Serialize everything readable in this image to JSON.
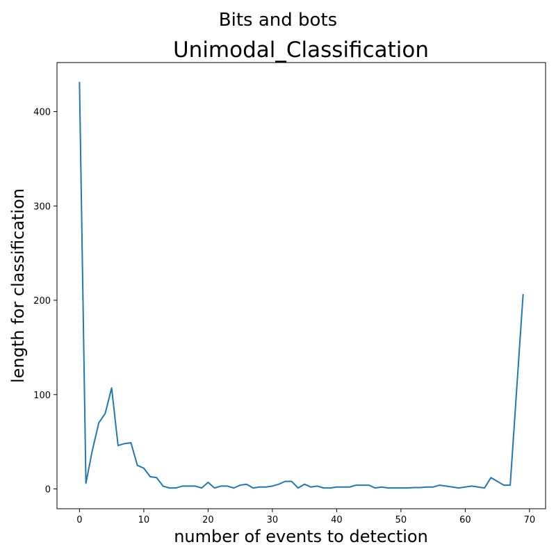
{
  "chart_data": {
    "type": "line",
    "suptitle": "Bits and bots",
    "title": "Unimodal_Classification",
    "xlabel": "number of events to detection",
    "ylabel": "length for classification",
    "xlim": [
      -3.5,
      72.5
    ],
    "ylim": [
      -21,
      452
    ],
    "xticks": [
      0,
      10,
      20,
      30,
      40,
      50,
      60,
      70
    ],
    "yticks": [
      0,
      100,
      200,
      300,
      400
    ],
    "grid": false,
    "legend": "none",
    "color": "#1f77b4",
    "x": [
      0,
      1,
      2,
      3,
      4,
      5,
      6,
      7,
      8,
      9,
      10,
      11,
      12,
      13,
      14,
      15,
      16,
      17,
      18,
      19,
      20,
      21,
      22,
      23,
      24,
      25,
      26,
      27,
      28,
      29,
      30,
      31,
      32,
      33,
      34,
      35,
      36,
      37,
      38,
      39,
      40,
      41,
      42,
      43,
      44,
      45,
      46,
      47,
      48,
      49,
      50,
      51,
      52,
      53,
      54,
      55,
      56,
      57,
      58,
      59,
      60,
      61,
      62,
      63,
      64,
      65,
      66,
      67,
      68,
      69
    ],
    "values": [
      431,
      6,
      41,
      70,
      80,
      107,
      46,
      48,
      49,
      25,
      22,
      13,
      12,
      3,
      1,
      1,
      3,
      3,
      3,
      1,
      7,
      1,
      3,
      3,
      1,
      4,
      5,
      1,
      2,
      2,
      3,
      5,
      8,
      8,
      1,
      5,
      2,
      3,
      1,
      1,
      2,
      2,
      2,
      4,
      4,
      4,
      1,
      2,
      1,
      1,
      1,
      1,
      1.5,
      1.5,
      2,
      2,
      4,
      3,
      2,
      1,
      2,
      3,
      2,
      1,
      12,
      8,
      4,
      4,
      105,
      206
    ]
  }
}
